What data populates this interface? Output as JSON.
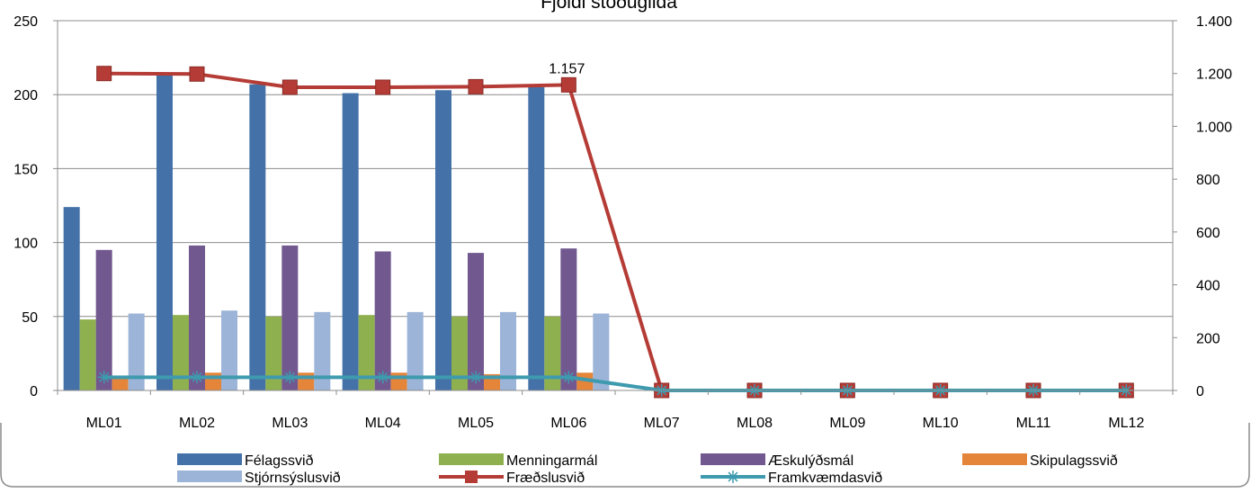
{
  "chart_data": {
    "type": "bar",
    "title": "Fjöldi stöðugilda",
    "categories": [
      "ML01",
      "ML02",
      "ML03",
      "ML04",
      "ML05",
      "ML06",
      "ML07",
      "ML08",
      "ML09",
      "ML10",
      "ML11",
      "ML12"
    ],
    "y_left": {
      "range": [
        0,
        250
      ],
      "ticks": [
        "0",
        "50",
        "100",
        "150",
        "200",
        "250"
      ],
      "tick_values": [
        0,
        50,
        100,
        150,
        200,
        250
      ]
    },
    "y_right": {
      "range": [
        0,
        1400
      ],
      "ticks": [
        "0",
        "200",
        "400",
        "600",
        "800",
        "1.000",
        "1.200",
        "1.400"
      ],
      "tick_values": [
        0,
        200,
        400,
        600,
        800,
        1000,
        1200,
        1400
      ]
    },
    "grid": true,
    "legend_position": "bottom",
    "bar_series": [
      {
        "name": "Félagssvið",
        "color": "#4472A8",
        "values": [
          124,
          214,
          207,
          201,
          203,
          205,
          null,
          null,
          null,
          null,
          null,
          null
        ]
      },
      {
        "name": "Menningarmál",
        "color": "#8FB04F",
        "values": [
          48,
          51,
          50,
          51,
          50,
          50,
          null,
          null,
          null,
          null,
          null,
          null
        ]
      },
      {
        "name": "Æskulýðsmál",
        "color": "#71588F",
        "values": [
          95,
          98,
          98,
          94,
          93,
          96,
          null,
          null,
          null,
          null,
          null,
          null
        ]
      },
      {
        "name": "Skipulagssvið",
        "color": "#E5853A",
        "values": [
          9,
          12,
          12,
          12,
          11,
          12,
          null,
          null,
          null,
          null,
          null,
          null
        ]
      },
      {
        "name": "Stjórnsýslusvið",
        "color": "#9CB4D8",
        "values": [
          52,
          54,
          53,
          53,
          53,
          52,
          null,
          null,
          null,
          null,
          null,
          null
        ]
      }
    ],
    "line_series": [
      {
        "name": "Fræðslusvið",
        "color": "#B53C36",
        "marker": "square",
        "axis": "right",
        "values": [
          1200,
          1198,
          1148,
          1148,
          1150,
          1157,
          0,
          0,
          0,
          0,
          0,
          0
        ]
      },
      {
        "name": "Framkvæmdasvið",
        "color": "#3E9AAE",
        "marker": "star",
        "axis": "right",
        "values": [
          50,
          50,
          50,
          50,
          50,
          50,
          0,
          0,
          0,
          0,
          0,
          0
        ]
      }
    ],
    "annotations": [
      {
        "series": "Fræðslusvið",
        "category": "ML06",
        "text": "1.157"
      }
    ]
  }
}
